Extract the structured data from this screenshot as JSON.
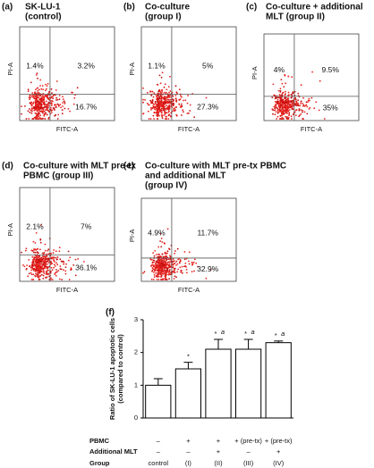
{
  "panels": [
    {
      "label": "(a)",
      "title": [
        "SK-LU-1",
        "(control)"
      ],
      "quadrants": {
        "ul": "1.4%",
        "ur": "3.2%",
        "lr": "16.7%"
      },
      "xlabel": "FITC-A",
      "ylabel": "PI-A"
    },
    {
      "label": "(b)",
      "title": [
        "Co-culture",
        "(group I)"
      ],
      "quadrants": {
        "ul": "1.1%",
        "ur": "5%",
        "lr": "27.3%"
      },
      "xlabel": "FITC-A",
      "ylabel": "PI-A"
    },
    {
      "label": "(c)",
      "title": [
        "Co-culture + additional",
        "MLT (group II)"
      ],
      "quadrants": {
        "ul": "4%",
        "ur": "9.5%",
        "lr": "35%"
      },
      "xlabel": "FITC-A",
      "ylabel": "PI-A"
    },
    {
      "label": "(d)",
      "title": [
        "Co-culture with MLT pre-tx",
        "PBMC (group III)"
      ],
      "quadrants": {
        "ul": "2.1%",
        "ur": "7%",
        "lr": "36.1%"
      },
      "xlabel": "FITC-A",
      "ylabel": "PI-A"
    },
    {
      "label": "(e)",
      "title": [
        "Co-culture with MLT pre-tx PBMC",
        "and additional MLT",
        "(group IV)"
      ],
      "quadrants": {
        "ul": "4.9%",
        "ur": "11.7%",
        "lr": "32.9%"
      },
      "xlabel": "FITC-A",
      "ylabel": "PI-A"
    }
  ],
  "chart_data": {
    "type": "bar",
    "label": "(f)",
    "ylabel": [
      "Ratio of SK-LU-1 apoptotic cells",
      "(compared to control)"
    ],
    "categories": [
      "control",
      "(I)",
      "(II)",
      "(III)",
      "(IV)"
    ],
    "values": [
      1.0,
      1.5,
      2.1,
      2.1,
      2.3
    ],
    "errors": [
      0.2,
      0.2,
      0.3,
      0.3,
      0.05
    ],
    "significance": [
      null,
      "*",
      "*",
      "*",
      "*"
    ],
    "letters": [
      null,
      null,
      "a",
      "a",
      "a"
    ],
    "color": "#ffffff",
    "ylim": [
      0,
      3
    ],
    "yticks": [
      0,
      1,
      2,
      3
    ],
    "xlabel": "Group",
    "rows": [
      {
        "label": "PBMC",
        "cells": [
          "–",
          "+",
          "+",
          "+ (pre-tx)",
          "+ (pre-tx)"
        ]
      },
      {
        "label": "Additional MLT",
        "cells": [
          "–",
          "–",
          "+",
          "–",
          "+"
        ]
      }
    ]
  }
}
